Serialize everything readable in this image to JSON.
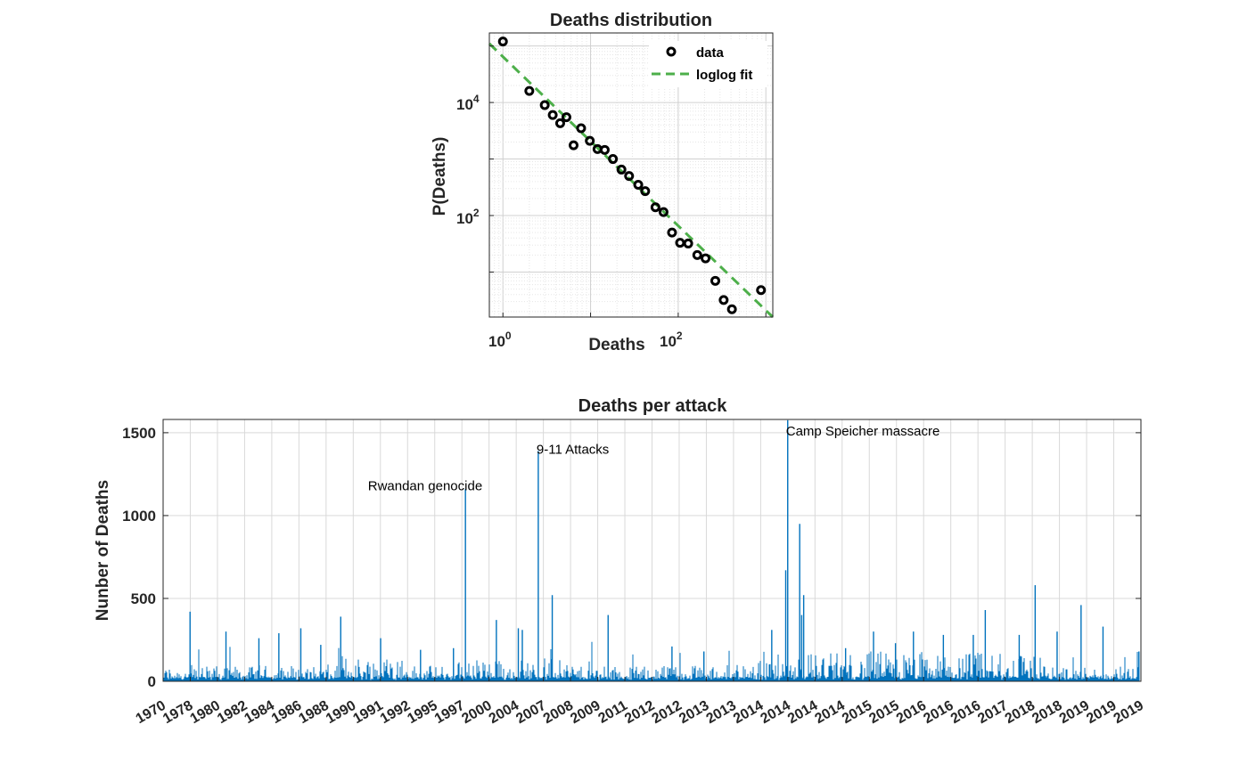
{
  "colors": {
    "fit_line": "#4DAF4A",
    "bars": "#0072BD",
    "markers": "#000000",
    "axis": "#262626",
    "grid": "#d9d9d9"
  },
  "chart_data": [
    {
      "type": "scatter",
      "title": "Deaths distribution",
      "xlabel": "Deaths",
      "ylabel": "P(Deaths)",
      "xscale": "log",
      "yscale": "log",
      "xlim": [
        0.7,
        1200
      ],
      "ylim": [
        1.6,
        170000
      ],
      "grid": true,
      "legend_position": "top-right",
      "x_ticks": [
        {
          "base": "10",
          "exp": "0",
          "value": 1
        },
        {
          "base": "10",
          "exp": "2",
          "value": 100
        }
      ],
      "y_ticks": [
        {
          "base": "10",
          "exp": "2",
          "value": 100
        },
        {
          "base": "10",
          "exp": "4",
          "value": 10000
        }
      ],
      "series": [
        {
          "name": "data",
          "style": "circle",
          "points": [
            {
              "x": 1,
              "y": 120000
            },
            {
              "x": 2,
              "y": 16000
            },
            {
              "x": 3,
              "y": 9000
            },
            {
              "x": 3.7,
              "y": 6000
            },
            {
              "x": 4.5,
              "y": 4300
            },
            {
              "x": 5.3,
              "y": 5500
            },
            {
              "x": 6.4,
              "y": 1750
            },
            {
              "x": 7.8,
              "y": 3500
            },
            {
              "x": 9.8,
              "y": 2100
            },
            {
              "x": 12,
              "y": 1500
            },
            {
              "x": 14.5,
              "y": 1450
            },
            {
              "x": 18,
              "y": 1000
            },
            {
              "x": 22.5,
              "y": 650
            },
            {
              "x": 27.5,
              "y": 500
            },
            {
              "x": 35,
              "y": 350
            },
            {
              "x": 42,
              "y": 270
            },
            {
              "x": 55,
              "y": 140
            },
            {
              "x": 68,
              "y": 115
            },
            {
              "x": 85,
              "y": 50
            },
            {
              "x": 105,
              "y": 33
            },
            {
              "x": 130,
              "y": 32
            },
            {
              "x": 165,
              "y": 20
            },
            {
              "x": 205,
              "y": 17.5
            },
            {
              "x": 265,
              "y": 7
            },
            {
              "x": 330,
              "y": 3.2
            },
            {
              "x": 410,
              "y": 2.2
            },
            {
              "x": 880,
              "y": 4.8
            }
          ]
        },
        {
          "name": "loglog fit",
          "style": "dashed-line",
          "points": [
            {
              "x": 0.7,
              "y": 110000
            },
            {
              "x": 1200,
              "y": 1.6
            }
          ]
        }
      ]
    },
    {
      "type": "bar",
      "title": "Deaths per attack",
      "xlabel": "",
      "ylabel": "Nunber of Deaths",
      "ylim": [
        0,
        1580
      ],
      "y_ticks": [
        0,
        500,
        1000,
        1500
      ],
      "grid": true,
      "x_tick_labels": [
        "1970",
        "1978",
        "1980",
        "1982",
        "1984",
        "1986",
        "1988",
        "1990",
        "1991",
        "1992",
        "1995",
        "1997",
        "2000",
        "2004",
        "2007",
        "2008",
        "2009",
        "2011",
        "2012",
        "2012",
        "2013",
        "2013",
        "2014",
        "2014",
        "2014",
        "2014",
        "2015",
        "2015",
        "2016",
        "2016",
        "2016",
        "2017",
        "2018",
        "2018",
        "2019",
        "2019",
        "2019"
      ],
      "x_range_index": [
        0,
        36
      ],
      "peaks": [
        {
          "x": 1.35,
          "value": 420
        },
        {
          "x": 3.15,
          "value": 300
        },
        {
          "x": 4.8,
          "value": 260
        },
        {
          "x": 5.8,
          "value": 290
        },
        {
          "x": 6.9,
          "value": 320
        },
        {
          "x": 7.9,
          "value": 220
        },
        {
          "x": 8.9,
          "value": 390
        },
        {
          "x": 10.9,
          "value": 260
        },
        {
          "x": 12.9,
          "value": 190
        },
        {
          "x": 14.55,
          "value": 200
        },
        {
          "x": 15.15,
          "value": 1160
        },
        {
          "x": 16.7,
          "value": 370
        },
        {
          "x": 17.8,
          "value": 320
        },
        {
          "x": 18.0,
          "value": 310
        },
        {
          "x": 18.8,
          "value": 1390
        },
        {
          "x": 19.5,
          "value": 520
        },
        {
          "x": 22.3,
          "value": 400
        },
        {
          "x": 25.5,
          "value": 210
        },
        {
          "x": 27.1,
          "value": 180
        },
        {
          "x": 30.5,
          "value": 310
        },
        {
          "x": 31.2,
          "value": 670
        },
        {
          "x": 31.3,
          "value": 1575
        },
        {
          "x": 31.9,
          "value": 950
        },
        {
          "x": 32.1,
          "value": 520
        },
        {
          "x": 32.0,
          "value": 400
        },
        {
          "x": 34.2,
          "value": 200
        },
        {
          "x": 35.6,
          "value": 300
        },
        {
          "x": 36.7,
          "value": 230
        },
        {
          "x": 37.6,
          "value": 300
        },
        {
          "x": 39.1,
          "value": 280
        },
        {
          "x": 40.6,
          "value": 280
        },
        {
          "x": 41.2,
          "value": 430
        },
        {
          "x": 42.9,
          "value": 280
        },
        {
          "x": 43.7,
          "value": 580
        },
        {
          "x": 44.8,
          "value": 300
        },
        {
          "x": 46.0,
          "value": 460
        },
        {
          "x": 47.1,
          "value": 330
        },
        {
          "x": 48.9,
          "value": 180
        }
      ],
      "annotations": [
        {
          "text": "Rwandan genocide",
          "x": 15.15,
          "y": 1180,
          "anchor": "end"
        },
        {
          "text": "9-11 Attacks",
          "x": 18.8,
          "y": 1400,
          "anchor": "start"
        },
        {
          "text": "Camp Speicher massacre",
          "x": 31.3,
          "y": 1510,
          "anchor": "start"
        }
      ]
    }
  ]
}
